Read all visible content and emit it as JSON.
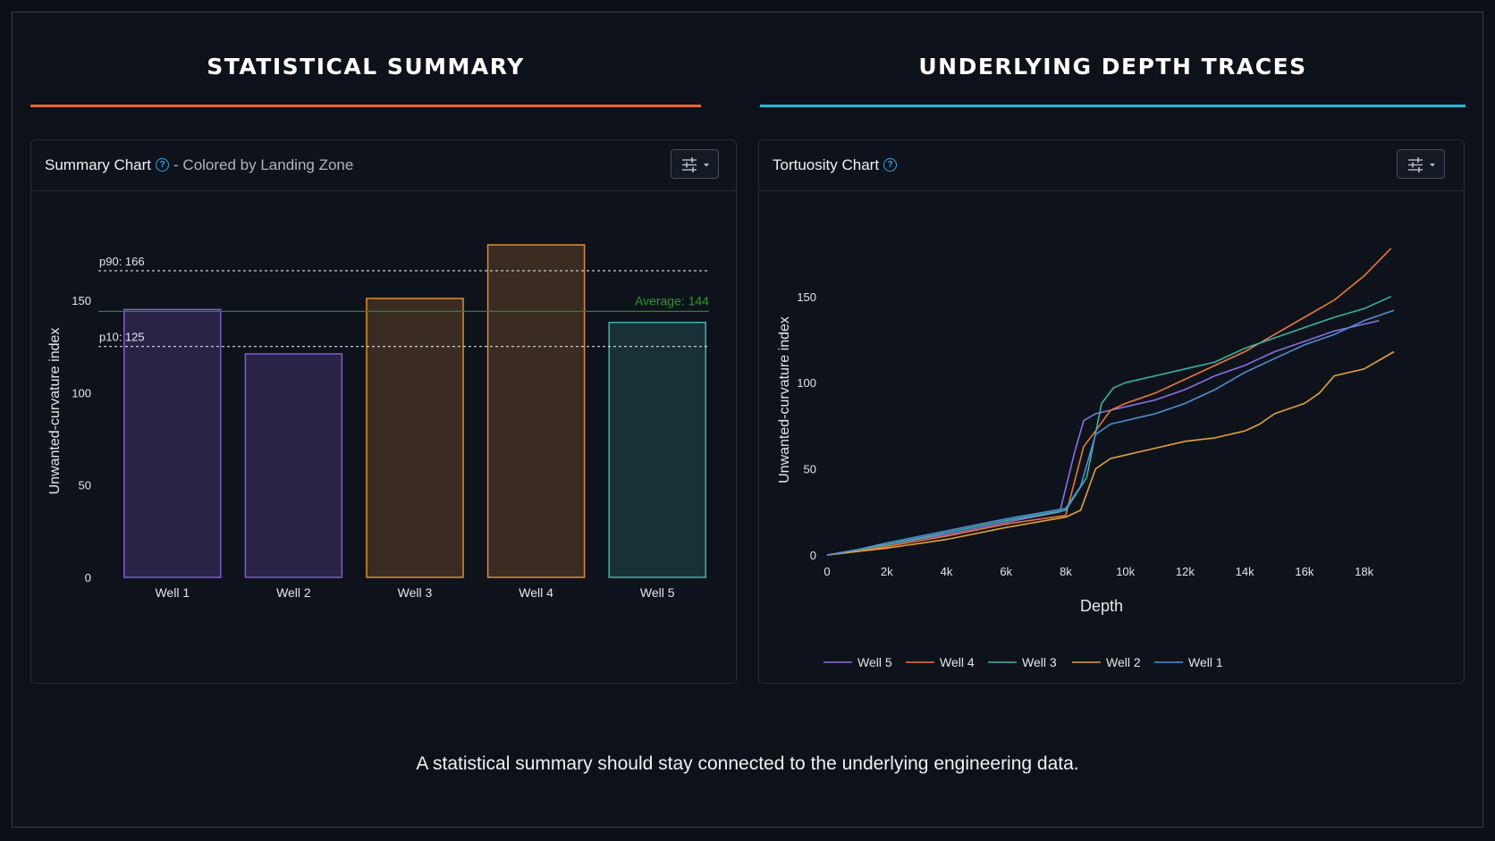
{
  "sections": {
    "left_title": "STATISTICAL SUMMARY",
    "right_title": "UNDERLYING DEPTH TRACES",
    "left_accent": "#e8652a",
    "right_accent": "#22b8dc"
  },
  "summary_card": {
    "title": "Summary Chart",
    "subtitle": "- Colored by Landing Zone",
    "help_icon": "help-circle-icon",
    "settings_icon": "sliders-icon"
  },
  "tortuosity_card": {
    "title": "Tortuosity Chart",
    "help_icon": "help-circle-icon",
    "settings_icon": "sliders-icon"
  },
  "caption": "A statistical summary should stay connected to the underlying engineering data.",
  "chart_data": [
    {
      "type": "bar",
      "title": "Summary Chart",
      "ylabel": "Unwanted-curvature index",
      "xlabel": "",
      "ylim": [
        0,
        180
      ],
      "yticks": [
        0,
        50,
        100,
        150
      ],
      "categories": [
        "Well 1",
        "Well 2",
        "Well 3",
        "Well 4",
        "Well 5"
      ],
      "values": [
        145,
        121,
        151,
        180,
        138
      ],
      "colors": [
        {
          "fill": "#2a2346",
          "stroke": "#7b5cd6"
        },
        {
          "fill": "#2a2346",
          "stroke": "#7b5cd6"
        },
        {
          "fill": "#3a2c22",
          "stroke": "#e08b35"
        },
        {
          "fill": "#3a2c22",
          "stroke": "#e08b35"
        },
        {
          "fill": "#183137",
          "stroke": "#3fb5ad"
        }
      ],
      "reference_lines": [
        {
          "label": "p90: 166",
          "value": 166,
          "style": "dotted",
          "color": "#d8dde5"
        },
        {
          "label": "Average: 144",
          "value": 144,
          "style": "solid",
          "color": "#1f8a1f"
        },
        {
          "label": "p10: 125",
          "value": 125,
          "style": "dotted",
          "color": "#d8dde5"
        }
      ],
      "grid": false,
      "legend": "none"
    },
    {
      "type": "line",
      "title": "Tortuosity Chart",
      "xlabel": "Depth",
      "ylabel": "Unwanted-curvature index",
      "xlim": [
        0,
        19000
      ],
      "ylim": [
        0,
        180
      ],
      "xticks": [
        "0",
        "2k",
        "4k",
        "6k",
        "8k",
        "10k",
        "12k",
        "14k",
        "16k",
        "18k"
      ],
      "xtick_values": [
        0,
        2000,
        4000,
        6000,
        8000,
        10000,
        12000,
        14000,
        16000,
        18000
      ],
      "yticks": [
        0,
        50,
        100,
        150
      ],
      "legend": "bottom",
      "series": [
        {
          "name": "Well 5",
          "color": "#8b6fe0",
          "x": [
            0,
            1000,
            2000,
            4000,
            6000,
            7800,
            8300,
            8600,
            9000,
            10000,
            11000,
            12000,
            13000,
            14000,
            15000,
            16000,
            17000,
            18500
          ],
          "y": [
            0,
            3,
            6,
            12,
            19,
            25,
            60,
            78,
            82,
            86,
            90,
            96,
            104,
            110,
            118,
            124,
            130,
            136
          ]
        },
        {
          "name": "Well 4",
          "color": "#e8773a",
          "x": [
            0,
            1000,
            2000,
            4000,
            6000,
            8000,
            8600,
            9000,
            9500,
            10000,
            11000,
            12000,
            13000,
            14000,
            15000,
            16000,
            17000,
            18000,
            18900
          ],
          "y": [
            0,
            2,
            5,
            11,
            18,
            23,
            63,
            72,
            84,
            88,
            94,
            102,
            110,
            118,
            128,
            138,
            148,
            162,
            178
          ]
        },
        {
          "name": "Well 3",
          "color": "#38b3a3",
          "x": [
            0,
            1000,
            2000,
            4000,
            6000,
            8000,
            8700,
            9200,
            9600,
            10000,
            11000,
            12000,
            13000,
            14000,
            15000,
            16000,
            17000,
            18000,
            18900
          ],
          "y": [
            0,
            3,
            6,
            13,
            20,
            26,
            45,
            88,
            97,
            100,
            104,
            108,
            112,
            120,
            126,
            132,
            138,
            143,
            150
          ]
        },
        {
          "name": "Well 2",
          "color": "#e3a23a",
          "x": [
            0,
            1000,
            2000,
            4000,
            6000,
            8000,
            8500,
            9000,
            9500,
            10000,
            11000,
            12000,
            13000,
            14000,
            14500,
            15000,
            16000,
            16500,
            17000,
            18000,
            19000
          ],
          "y": [
            0,
            2,
            4,
            9,
            16,
            22,
            26,
            50,
            56,
            58,
            62,
            66,
            68,
            72,
            76,
            82,
            88,
            94,
            104,
            108,
            118
          ]
        },
        {
          "name": "Well 1",
          "color": "#4f8fd6",
          "x": [
            0,
            1000,
            2000,
            4000,
            6000,
            8000,
            8500,
            9000,
            9500,
            10000,
            11000,
            12000,
            13000,
            14000,
            15000,
            16000,
            17000,
            18000,
            19000
          ],
          "y": [
            0,
            3,
            7,
            14,
            21,
            27,
            40,
            70,
            76,
            78,
            82,
            88,
            96,
            106,
            114,
            122,
            128,
            136,
            142
          ]
        }
      ]
    }
  ]
}
